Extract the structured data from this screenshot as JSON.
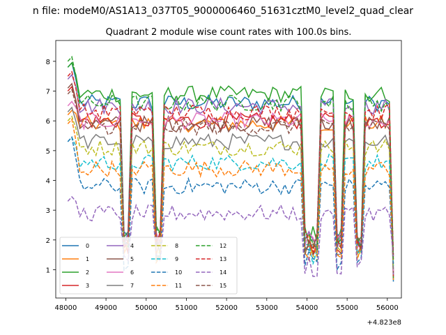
{
  "figure": {
    "suptitle": "n file: modeM0/AS1A13_037T05_9000006460_51631cztM0_level2_quad_clear",
    "title": "Quadrant 2 module wise count rates with 100.0s bins.",
    "offset_label": "+4.823e8"
  },
  "chart_data": {
    "type": "line",
    "title": "Quadrant 2 module wise count rates with 100.0s bins.",
    "xlabel": "",
    "ylabel": "",
    "x_offset": 482300000,
    "xlim": [
      47750,
      56350
    ],
    "ylim": [
      0.05,
      8.7
    ],
    "xticks": [
      48000,
      49000,
      50000,
      51000,
      52000,
      53000,
      54000,
      55000,
      56000
    ],
    "xtick_labels": [
      "48000",
      "49000",
      "50000",
      "51000",
      "52000",
      "53000",
      "54000",
      "55000",
      "56000"
    ],
    "yticks": [
      1,
      2,
      3,
      4,
      5,
      6,
      7,
      8
    ],
    "ytick_labels": [
      "1",
      "2",
      "3",
      "4",
      "5",
      "6",
      "7",
      "8"
    ],
    "bins": {
      "start": 48050,
      "end": 56150,
      "step": 100
    },
    "dip_bins": [
      14,
      15,
      22,
      23,
      59,
      60,
      61,
      62,
      67,
      68,
      72,
      73,
      81
    ],
    "legend": {
      "loc": "lower left",
      "ncol": 4
    },
    "series": [
      {
        "name": "0",
        "color": "#1f77b4",
        "dash": "solid",
        "level": 6.6,
        "start": 7.8
      },
      {
        "name": "1",
        "color": "#ff7f0e",
        "dash": "solid",
        "level": 5.9,
        "start": 6.2
      },
      {
        "name": "2",
        "color": "#2ca02c",
        "dash": "solid",
        "level": 6.9,
        "start": 7.8
      },
      {
        "name": "3",
        "color": "#d62728",
        "dash": "solid",
        "level": 6.0,
        "start": 7.0
      },
      {
        "name": "4",
        "color": "#9467bd",
        "dash": "solid",
        "level": 6.5,
        "start": 7.4
      },
      {
        "name": "5",
        "color": "#8c564b",
        "dash": "solid",
        "level": 5.9,
        "start": 7.1
      },
      {
        "name": "6",
        "color": "#e377c2",
        "dash": "solid",
        "level": 6.0,
        "start": 6.5
      },
      {
        "name": "7",
        "color": "#7f7f7f",
        "dash": "solid",
        "level": 5.3,
        "start": 6.3
      },
      {
        "name": "8",
        "color": "#bcbd22",
        "dash": "dashed",
        "level": 5.1,
        "start": 6.0
      },
      {
        "name": "9",
        "color": "#17becf",
        "dash": "dashed",
        "level": 4.6,
        "start": 5.3
      },
      {
        "name": "10",
        "color": "#1f77b4",
        "dash": "dashed",
        "level": 3.8,
        "start": 5.3
      },
      {
        "name": "11",
        "color": "#ff7f0e",
        "dash": "dashed",
        "level": 4.4,
        "start": 5.9
      },
      {
        "name": "12",
        "color": "#2ca02c",
        "dash": "dashed",
        "level": 6.6,
        "start": 8.0
      },
      {
        "name": "13",
        "color": "#d62728",
        "dash": "dashed",
        "level": 6.3,
        "start": 7.5
      },
      {
        "name": "14",
        "color": "#9467bd",
        "dash": "dashed",
        "level": 2.9,
        "start": 3.3
      },
      {
        "name": "15",
        "color": "#8c564b",
        "dash": "dashed",
        "level": 5.8,
        "start": 6.9
      }
    ]
  }
}
